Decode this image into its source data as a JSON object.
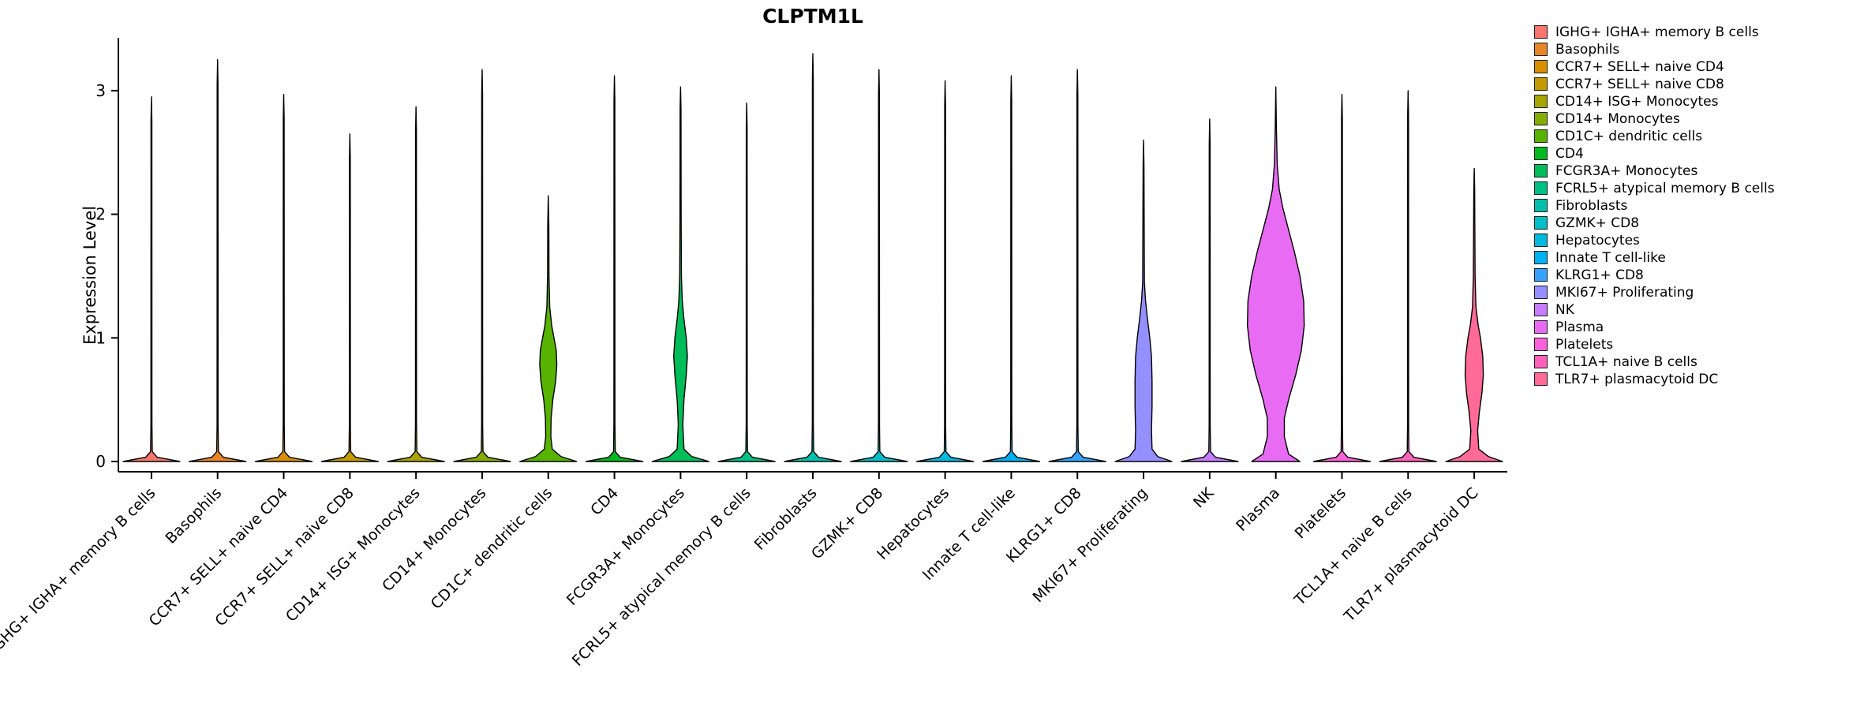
{
  "chart_data": {
    "type": "violin",
    "title": "CLPTM1L",
    "ylabel": "Expression Level",
    "yticks": [
      0,
      1,
      2,
      3
    ],
    "ylim": [
      -0.1,
      3.45
    ],
    "grid": false,
    "legend_position": "right",
    "categories": [
      "IGHG+ IGHA+ memory B cells",
      "Basophils",
      "CCR7+ SELL+ naive CD4",
      "CCR7+ SELL+ naive CD8",
      "CD14+ ISG+ Monocytes",
      "CD14+ Monocytes",
      "CD1C+ dendritic cells",
      "CD4",
      "FCGR3A+ Monocytes",
      "FCRL5+ atypical memory B cells",
      "Fibroblasts",
      "GZMK+ CD8",
      "Hepatocytes",
      "Innate T cell-like",
      "KLRG1+ CD8",
      "MKI67+ Proliferating",
      "NK",
      "Plasma",
      "Platelets",
      "TCL1A+ naive B cells",
      "TLR7+ plasmacytoid DC"
    ],
    "series": [
      {
        "name": "IGHG+ IGHA+ memory B cells",
        "color": "#F8766D",
        "shape": "spike",
        "max_expression": 2.95
      },
      {
        "name": "Basophils",
        "color": "#E88526",
        "shape": "spike",
        "max_expression": 3.25
      },
      {
        "name": "CCR7+ SELL+ naive CD4",
        "color": "#D89000",
        "shape": "spike",
        "max_expression": 2.97
      },
      {
        "name": "CCR7+ SELL+ naive CD8",
        "color": "#C39B00",
        "shape": "spike",
        "max_expression": 2.65
      },
      {
        "name": "CD14+ ISG+ Monocytes",
        "color": "#A8A400",
        "shape": "spike",
        "max_expression": 2.87
      },
      {
        "name": "CD14+ Monocytes",
        "color": "#87AC00",
        "shape": "spike",
        "max_expression": 3.17
      },
      {
        "name": "CD1C+ dendritic cells",
        "color": "#58B300",
        "shape": "violin",
        "max_expression": 2.15,
        "profile": [
          [
            0,
            1
          ],
          [
            0.04,
            0.45
          ],
          [
            0.1,
            0.14
          ],
          [
            0.2,
            0.09
          ],
          [
            0.35,
            0.1
          ],
          [
            0.5,
            0.16
          ],
          [
            0.65,
            0.26
          ],
          [
            0.78,
            0.3
          ],
          [
            0.9,
            0.28
          ],
          [
            1.0,
            0.2
          ],
          [
            1.1,
            0.12
          ],
          [
            1.25,
            0.05
          ],
          [
            1.5,
            0.025
          ],
          [
            1.9,
            0.02
          ],
          [
            2.15,
            0
          ]
        ]
      },
      {
        "name": "CD4",
        "color": "#00B81F",
        "shape": "spike",
        "max_expression": 3.12
      },
      {
        "name": "FCGR3A+ Monocytes",
        "color": "#00BC59",
        "shape": "violin",
        "max_expression": 3.03,
        "profile": [
          [
            0,
            1
          ],
          [
            0.04,
            0.4
          ],
          [
            0.1,
            0.12
          ],
          [
            0.3,
            0.08
          ],
          [
            0.5,
            0.12
          ],
          [
            0.7,
            0.2
          ],
          [
            0.85,
            0.24
          ],
          [
            1.0,
            0.2
          ],
          [
            1.15,
            0.12
          ],
          [
            1.3,
            0.06
          ],
          [
            1.5,
            0.03
          ],
          [
            2.0,
            0.02
          ],
          [
            2.85,
            0.015
          ],
          [
            3.03,
            0
          ]
        ]
      },
      {
        "name": "FCRL5+ atypical memory B cells",
        "color": "#00BF85",
        "shape": "spike",
        "max_expression": 2.9
      },
      {
        "name": "Fibroblasts",
        "color": "#00C0AC",
        "shape": "spike",
        "max_expression": 3.3
      },
      {
        "name": "GZMK+ CD8",
        "color": "#00BFC8",
        "shape": "spike",
        "max_expression": 3.17
      },
      {
        "name": "Hepatocytes",
        "color": "#00BADE",
        "shape": "spike",
        "max_expression": 3.08
      },
      {
        "name": "Innate T cell-like",
        "color": "#00B1F2",
        "shape": "spike",
        "max_expression": 3.12
      },
      {
        "name": "KLRG1+ CD8",
        "color": "#35A2FF",
        "shape": "spike",
        "max_expression": 3.17
      },
      {
        "name": "MKI67+ Proliferating",
        "color": "#9590FF",
        "shape": "violin",
        "max_expression": 2.6,
        "profile": [
          [
            0,
            1
          ],
          [
            0.04,
            0.5
          ],
          [
            0.1,
            0.3
          ],
          [
            0.25,
            0.28
          ],
          [
            0.45,
            0.3
          ],
          [
            0.65,
            0.3
          ],
          [
            0.85,
            0.28
          ],
          [
            1.0,
            0.22
          ],
          [
            1.15,
            0.14
          ],
          [
            1.3,
            0.07
          ],
          [
            1.45,
            0.03
          ],
          [
            2.4,
            0.015
          ],
          [
            2.6,
            0
          ]
        ]
      },
      {
        "name": "NK",
        "color": "#C77CFF",
        "shape": "spike",
        "max_expression": 2.77
      },
      {
        "name": "Plasma",
        "color": "#E86BF3",
        "shape": "violin",
        "max_expression": 3.03,
        "profile": [
          [
            0,
            0.85
          ],
          [
            0.06,
            0.45
          ],
          [
            0.2,
            0.3
          ],
          [
            0.35,
            0.3
          ],
          [
            0.5,
            0.45
          ],
          [
            0.7,
            0.7
          ],
          [
            0.9,
            0.9
          ],
          [
            1.1,
            1.0
          ],
          [
            1.3,
            0.98
          ],
          [
            1.5,
            0.85
          ],
          [
            1.7,
            0.65
          ],
          [
            1.9,
            0.42
          ],
          [
            2.05,
            0.25
          ],
          [
            2.2,
            0.12
          ],
          [
            2.4,
            0.05
          ],
          [
            2.7,
            0.02
          ],
          [
            3.03,
            0
          ]
        ]
      },
      {
        "name": "Platelets",
        "color": "#FA62DB",
        "shape": "spike",
        "max_expression": 2.97
      },
      {
        "name": "TCL1A+ naive B cells",
        "color": "#FF62BC",
        "shape": "spike",
        "max_expression": 3.0
      },
      {
        "name": "TLR7+ plasmacytoid DC",
        "color": "#FF6A98",
        "shape": "violin",
        "max_expression": 2.37,
        "profile": [
          [
            0,
            1
          ],
          [
            0.04,
            0.5
          ],
          [
            0.1,
            0.16
          ],
          [
            0.25,
            0.12
          ],
          [
            0.4,
            0.18
          ],
          [
            0.55,
            0.27
          ],
          [
            0.7,
            0.32
          ],
          [
            0.85,
            0.3
          ],
          [
            1.0,
            0.22
          ],
          [
            1.1,
            0.14
          ],
          [
            1.25,
            0.06
          ],
          [
            1.5,
            0.03
          ],
          [
            2.2,
            0.015
          ],
          [
            2.37,
            0
          ]
        ]
      }
    ]
  }
}
